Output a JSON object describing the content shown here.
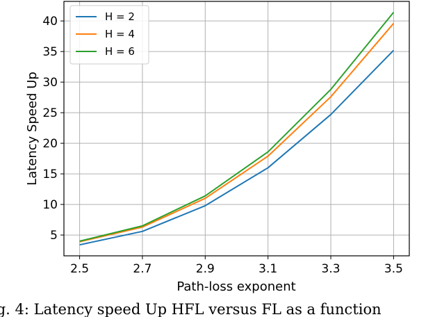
{
  "chart_data": {
    "type": "line",
    "title": "",
    "xlabel": "Path-loss exponent",
    "ylabel": "Latency Speed Up",
    "x": [
      2.5,
      2.7,
      2.9,
      3.1,
      3.3,
      3.5
    ],
    "xticks": [
      "2.5",
      "2.7",
      "2.9",
      "3.1",
      "3.3",
      "3.5"
    ],
    "yticks": [
      "5",
      "10",
      "15",
      "20",
      "25",
      "30",
      "35",
      "40"
    ],
    "xlim": [
      2.45,
      3.55
    ],
    "ylim": [
      1.6,
      43.2
    ],
    "grid": true,
    "legend_position": "top-left",
    "series": [
      {
        "name": "H = 2",
        "color": "#1f77b4",
        "values": [
          3.4,
          5.6,
          9.8,
          16.0,
          24.7,
          35.2
        ]
      },
      {
        "name": "H = 4",
        "color": "#ff7f0e",
        "values": [
          3.9,
          6.3,
          11.0,
          17.9,
          27.6,
          39.6
        ]
      },
      {
        "name": "H = 6",
        "color": "#2ca02c",
        "values": [
          4.0,
          6.5,
          11.4,
          18.6,
          28.8,
          41.4
        ]
      }
    ]
  },
  "caption": "ig. 4: Latency speed Up HFL versus FL as a function"
}
